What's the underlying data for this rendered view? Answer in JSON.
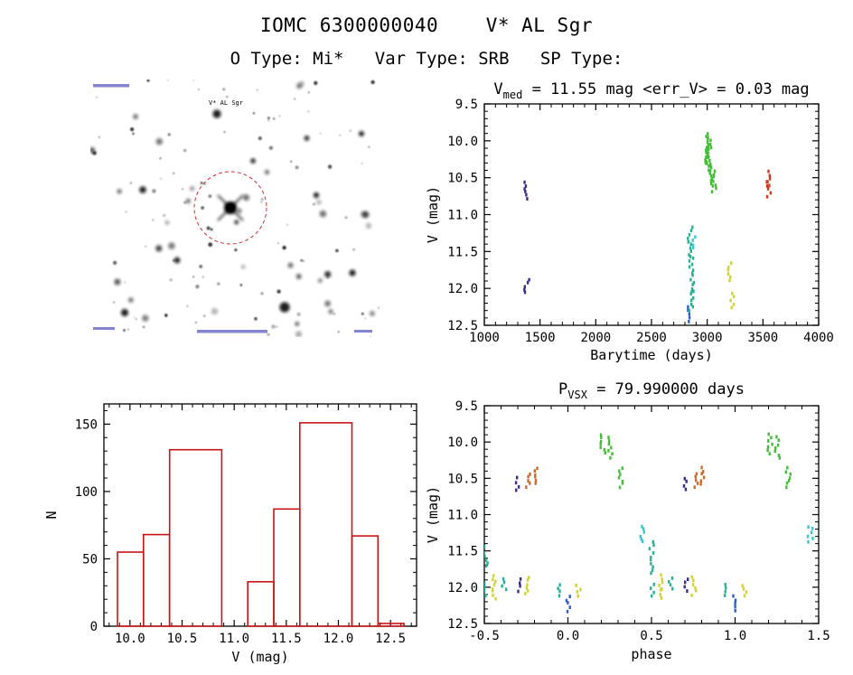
{
  "header": {
    "title": "IOMC 6300000040    V* AL Sgr",
    "subtitle": "O Type: Mi*   Var Type: SRB   SP Type:"
  },
  "finder": {
    "target_label": "V* AL Sgr",
    "circle_color": "#cc3333"
  },
  "chart_data": [
    {
      "id": "lightcurve",
      "type": "scatter",
      "title_parts": [
        {
          "text": "V"
        },
        {
          "text": "med",
          "sub": true
        },
        {
          "text": " = 11.55 mag <err_V> = 0.03 mag"
        }
      ],
      "xlabel": "Barytime (days)",
      "ylabel": "V (mag)",
      "xlim": [
        1000,
        4000
      ],
      "ylim": [
        9.5,
        12.5
      ],
      "xminor": 100,
      "yminor": 0.1,
      "xticks": [
        {
          "v": 1000,
          "label": "1000"
        },
        {
          "v": 1500,
          "label": "1500"
        },
        {
          "v": 2000,
          "label": "2000"
        },
        {
          "v": 2500,
          "label": "2500"
        },
        {
          "v": 3000,
          "label": "3000"
        },
        {
          "v": 3500,
          "label": "3500"
        },
        {
          "v": 4000,
          "label": "4000"
        }
      ],
      "yticks": [
        {
          "v": 9.5,
          "label": "9.5"
        },
        {
          "v": 10.0,
          "label": "10.0"
        },
        {
          "v": 10.5,
          "label": "10.5"
        },
        {
          "v": 11.0,
          "label": "11.0"
        },
        {
          "v": 11.5,
          "label": "11.5"
        },
        {
          "v": 12.0,
          "label": "12.0"
        },
        {
          "v": 12.5,
          "label": "12.5"
        }
      ],
      "clusters": [
        {
          "x": 1372,
          "y0": 10.56,
          "y1": 10.78,
          "color": "#3a2b8c"
        },
        {
          "x": 1378,
          "y0": 11.88,
          "y1": 12.06,
          "color": "#3a2b8c"
        },
        {
          "x": 2842,
          "y0": 12.26,
          "y1": 12.44,
          "color": "#2f5fc8"
        },
        {
          "x": 2850,
          "y0": 11.18,
          "y1": 11.58,
          "color": "#28b195"
        },
        {
          "x": 2856,
          "y0": 11.58,
          "y1": 12.04,
          "color": "#28b195"
        },
        {
          "x": 2862,
          "y0": 12.04,
          "y1": 12.3,
          "color": "#28b195"
        },
        {
          "x": 2868,
          "y0": 11.3,
          "y1": 11.46,
          "color": "#38c7d2"
        },
        {
          "x": 2995,
          "y0": 9.96,
          "y1": 10.34,
          "color": "#44bd38"
        },
        {
          "x": 3008,
          "y0": 9.9,
          "y1": 10.3,
          "color": "#44bd38"
        },
        {
          "x": 3016,
          "y0": 10.06,
          "y1": 10.44,
          "color": "#44bd38"
        },
        {
          "x": 3048,
          "y0": 10.32,
          "y1": 10.62,
          "color": "#44bd38"
        },
        {
          "x": 3060,
          "y0": 10.42,
          "y1": 10.7,
          "color": "#44bd38"
        },
        {
          "x": 3198,
          "y0": 11.66,
          "y1": 11.88,
          "color": "#d2d234"
        },
        {
          "x": 3232,
          "y0": 12.06,
          "y1": 12.26,
          "color": "#d2d234"
        },
        {
          "x": 3548,
          "y0": 10.42,
          "y1": 10.6,
          "color": "#d2371c"
        },
        {
          "x": 3556,
          "y0": 10.56,
          "y1": 10.76,
          "color": "#d2371c"
        }
      ]
    },
    {
      "id": "histogram",
      "type": "histogram",
      "xlabel": "V (mag)",
      "ylabel": "N",
      "color": "#c81414",
      "xlim": [
        9.75,
        12.75
      ],
      "ylim": [
        0,
        165
      ],
      "y_up": true,
      "xminor": 0.1,
      "yminor": 10,
      "xticks": [
        {
          "v": 10.0,
          "label": "10.0"
        },
        {
          "v": 10.5,
          "label": "10.5"
        },
        {
          "v": 11.0,
          "label": "11.0"
        },
        {
          "v": 11.5,
          "label": "11.5"
        },
        {
          "v": 12.0,
          "label": "12.0"
        },
        {
          "v": 12.5,
          "label": "12.5"
        }
      ],
      "yticks": [
        {
          "v": 0,
          "label": "0"
        },
        {
          "v": 50,
          "label": "50"
        },
        {
          "v": 100,
          "label": "100"
        },
        {
          "v": 150,
          "label": "150"
        }
      ],
      "bins": [
        {
          "x0": 9.88,
          "x1": 10.13,
          "n": 55
        },
        {
          "x0": 10.13,
          "x1": 10.38,
          "n": 68
        },
        {
          "x0": 10.38,
          "x1": 10.88,
          "n": 131
        },
        {
          "x0": 10.88,
          "x1": 11.13,
          "n": 0
        },
        {
          "x0": 11.13,
          "x1": 11.38,
          "n": 33
        },
        {
          "x0": 11.38,
          "x1": 11.63,
          "n": 87
        },
        {
          "x0": 11.63,
          "x1": 12.13,
          "n": 151
        },
        {
          "x0": 12.13,
          "x1": 12.38,
          "n": 67
        },
        {
          "x0": 12.38,
          "x1": 12.63,
          "n": 2
        }
      ]
    },
    {
      "id": "phase",
      "type": "scatter",
      "title_parts": [
        {
          "text": "P"
        },
        {
          "text": "VSX",
          "sub": true
        },
        {
          "text": " = 79.990000 days"
        }
      ],
      "xlabel": "phase",
      "ylabel": "V (mag)",
      "xlim": [
        -0.5,
        1.5
      ],
      "ylim": [
        9.5,
        12.5
      ],
      "xminor": 0.1,
      "yminor": 0.1,
      "xticks": [
        {
          "v": -0.5,
          "label": "-0.5"
        },
        {
          "v": 0.0,
          "label": "0.0"
        },
        {
          "v": 0.5,
          "label": "0.5"
        },
        {
          "v": 1.0,
          "label": "1.0"
        },
        {
          "v": 1.5,
          "label": "1.5"
        }
      ],
      "yticks": [
        {
          "v": 9.5,
          "label": "9.5"
        },
        {
          "v": 10.0,
          "label": "10.0"
        },
        {
          "v": 10.5,
          "label": "10.5"
        },
        {
          "v": 11.0,
          "label": "11.0"
        },
        {
          "v": 11.5,
          "label": "11.5"
        },
        {
          "v": 12.0,
          "label": "12.0"
        },
        {
          "v": 12.5,
          "label": "12.5"
        }
      ],
      "clusters": [
        {
          "x": -0.5,
          "y0": 11.38,
          "y1": 11.58,
          "color": "#28b195"
        },
        {
          "x": -0.497,
          "y0": 11.62,
          "y1": 11.8,
          "color": "#28b195"
        },
        {
          "x": -0.49,
          "y0": 11.96,
          "y1": 12.12,
          "color": "#28b195"
        },
        {
          "x": -0.445,
          "y0": 11.84,
          "y1": 12.02,
          "color": "#d2d234"
        },
        {
          "x": -0.435,
          "y0": 12.04,
          "y1": 12.16,
          "color": "#d2d234"
        },
        {
          "x": -0.385,
          "y0": 11.88,
          "y1": 12.02,
          "color": "#28b195"
        },
        {
          "x": -0.3,
          "y0": 10.5,
          "y1": 10.66,
          "color": "#3a2b8c"
        },
        {
          "x": -0.295,
          "y0": 11.88,
          "y1": 12.05,
          "color": "#3a2b8c"
        },
        {
          "x": -0.25,
          "y0": 11.86,
          "y1": 12.1,
          "color": "#d2d234"
        },
        {
          "x": -0.235,
          "y0": 10.44,
          "y1": 10.62,
          "color": "#cd6a2a"
        },
        {
          "x": -0.2,
          "y0": 10.36,
          "y1": 10.58,
          "color": "#cd6a2a"
        },
        {
          "x": -0.06,
          "y0": 11.96,
          "y1": 12.12,
          "color": "#28b195"
        },
        {
          "x": 0.0,
          "y0": 12.12,
          "y1": 12.33,
          "color": "#2f5fc8"
        },
        {
          "x": 0.06,
          "y0": 11.98,
          "y1": 12.12,
          "color": "#d2d234"
        },
        {
          "x": 0.21,
          "y0": 9.9,
          "y1": 10.16,
          "color": "#44bd38"
        },
        {
          "x": 0.255,
          "y0": 9.94,
          "y1": 10.22,
          "color": "#44bd38"
        },
        {
          "x": 0.32,
          "y0": 10.36,
          "y1": 10.62,
          "color": "#44bd38"
        },
        {
          "x": 0.45,
          "y0": 11.16,
          "y1": 11.38,
          "color": "#38c7d2"
        },
        {
          "x": 0.5,
          "y0": 11.38,
          "y1": 11.58,
          "color": "#28b195"
        },
        {
          "x": 0.503,
          "y0": 11.62,
          "y1": 11.8,
          "color": "#28b195"
        },
        {
          "x": 0.51,
          "y0": 11.96,
          "y1": 12.12,
          "color": "#28b195"
        },
        {
          "x": 0.555,
          "y0": 11.84,
          "y1": 12.02,
          "color": "#d2d234"
        },
        {
          "x": 0.565,
          "y0": 12.04,
          "y1": 12.16,
          "color": "#d2d234"
        },
        {
          "x": 0.615,
          "y0": 11.88,
          "y1": 12.02,
          "color": "#28b195"
        },
        {
          "x": 0.7,
          "y0": 10.5,
          "y1": 10.66,
          "color": "#3a2b8c"
        },
        {
          "x": 0.705,
          "y0": 11.88,
          "y1": 12.05,
          "color": "#3a2b8c"
        },
        {
          "x": 0.75,
          "y0": 11.86,
          "y1": 12.1,
          "color": "#d2d234"
        },
        {
          "x": 0.765,
          "y0": 10.44,
          "y1": 10.62,
          "color": "#cd6a2a"
        },
        {
          "x": 0.8,
          "y0": 10.36,
          "y1": 10.58,
          "color": "#cd6a2a"
        },
        {
          "x": 0.94,
          "y0": 11.96,
          "y1": 12.12,
          "color": "#28b195"
        },
        {
          "x": 1.0,
          "y0": 12.12,
          "y1": 12.33,
          "color": "#2f5fc8"
        },
        {
          "x": 1.06,
          "y0": 11.98,
          "y1": 12.12,
          "color": "#d2d234"
        },
        {
          "x": 1.21,
          "y0": 9.9,
          "y1": 10.16,
          "color": "#44bd38"
        },
        {
          "x": 1.255,
          "y0": 9.94,
          "y1": 10.22,
          "color": "#44bd38"
        },
        {
          "x": 1.32,
          "y0": 10.36,
          "y1": 10.62,
          "color": "#44bd38"
        },
        {
          "x": 1.45,
          "y0": 11.16,
          "y1": 11.38,
          "color": "#38c7d2"
        }
      ]
    }
  ]
}
